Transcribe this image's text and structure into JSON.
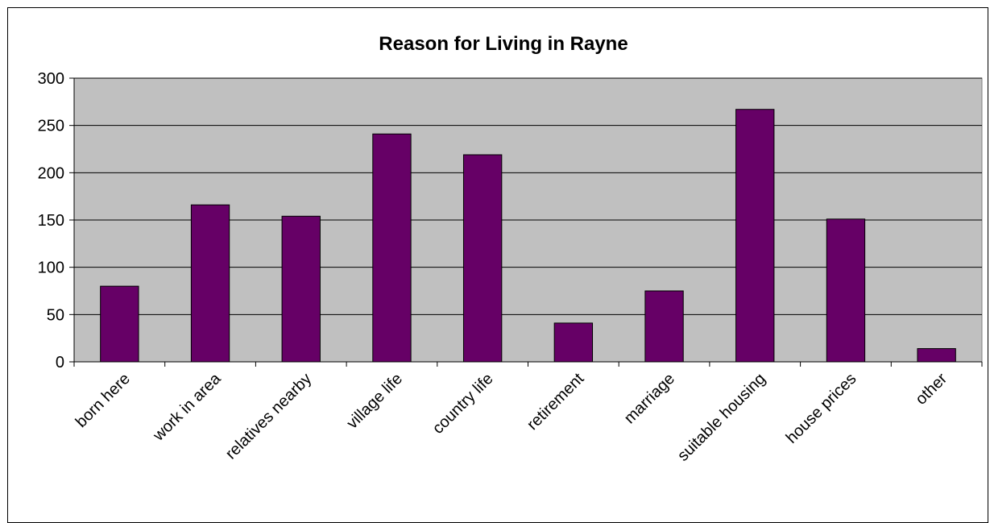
{
  "chart_data": {
    "type": "bar",
    "title": "Reason for Living in Rayne",
    "xlabel": "",
    "ylabel": "",
    "categories": [
      "born here",
      "work in area",
      "relatives nearby",
      "village life",
      "country life",
      "retirement",
      "marriage",
      "suitable housing",
      "house prices",
      "other"
    ],
    "values": [
      80,
      166,
      154,
      241,
      219,
      41,
      75,
      267,
      151,
      14
    ],
    "ylim": [
      0,
      300
    ],
    "y_ticks": [
      "0",
      "50",
      "100",
      "150",
      "200",
      "250",
      "300"
    ],
    "grid": true,
    "legend": "none",
    "colors": {
      "plot_background": "#c0c0c0",
      "bar_fill": "#660066",
      "bar_stroke": "#000000",
      "gridline": "#000000"
    }
  }
}
